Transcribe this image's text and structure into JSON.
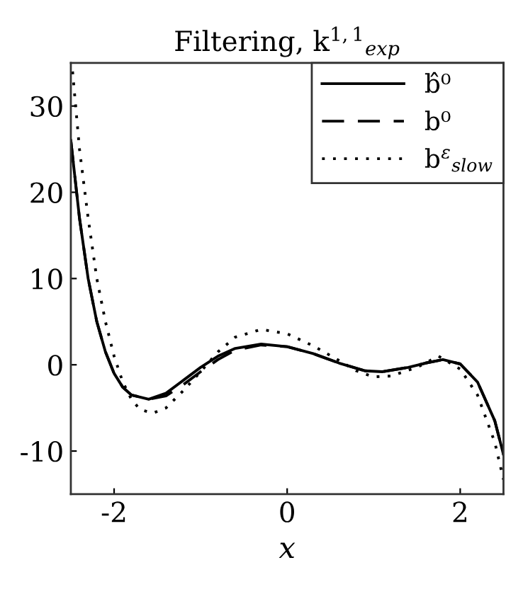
{
  "chart_data": {
    "type": "line",
    "title": "Filtering, k$^{1,1}$$_{exp}$",
    "xlabel": "x",
    "xlim": [
      -2.5,
      2.5
    ],
    "ylim": [
      -15,
      35
    ],
    "xticks": [
      -2,
      0,
      2
    ],
    "yticks": [
      -10,
      0,
      10,
      20,
      30
    ],
    "grid": false,
    "legend": "top right",
    "marker": "none",
    "series": [
      {
        "name": "b̂⁰",
        "color": "#000000",
        "line_style": "solid",
        "x": [
          -2.5,
          -2.4,
          -2.3,
          -2.2,
          -2.1,
          -2.0,
          -1.9,
          -1.8,
          -1.6,
          -1.4,
          -1.2,
          -1.0,
          -0.8,
          -0.6,
          -0.3,
          0,
          0.3,
          0.6,
          0.9,
          1.1,
          1.4,
          1.6,
          1.8,
          2.0,
          2.2,
          2.4,
          2.5
        ],
        "values": [
          26,
          17,
          10,
          5,
          1.5,
          -1,
          -2.6,
          -3.5,
          -4,
          -3.3,
          -1.8,
          -0.3,
          1,
          1.9,
          2.4,
          2.1,
          1.3,
          0.2,
          -0.7,
          -0.8,
          -0.3,
          0.2,
          0.6,
          0.1,
          -2,
          -6.5,
          -10.4
        ]
      },
      {
        "name": "b⁰",
        "color": "#000000",
        "line_style": "dashed",
        "x": [
          -2.5,
          -2.4,
          -2.3,
          -2.2,
          -2.1,
          -2.0,
          -1.9,
          -1.8,
          -1.6,
          -1.4,
          -1.2,
          -1.0,
          -0.8,
          -0.6,
          -0.3,
          0,
          0.3,
          0.6,
          0.9,
          1.1,
          1.4,
          1.6,
          1.8,
          2.0,
          2.2,
          2.4,
          2.5
        ],
        "values": [
          26,
          17,
          10,
          5,
          1.5,
          -1,
          -2.6,
          -3.5,
          -4,
          -3.6,
          -2.3,
          -0.8,
          0.6,
          1.7,
          2.3,
          2.1,
          1.3,
          0.2,
          -0.7,
          -0.8,
          -0.3,
          0.2,
          0.6,
          0.1,
          -2,
          -6.5,
          -10.4
        ]
      },
      {
        "name": "b$^{ε}$$_{slow}$",
        "color": "#000000",
        "line_style": "dotted",
        "x": [
          -2.48,
          -2.4,
          -2.3,
          -2.2,
          -2.1,
          -2.0,
          -1.9,
          -1.8,
          -1.7,
          -1.55,
          -1.4,
          -1.2,
          -1.0,
          -0.8,
          -0.6,
          -0.3,
          0,
          0.3,
          0.6,
          0.8,
          1.0,
          1.2,
          1.5,
          1.75,
          2.0,
          2.2,
          2.4,
          2.5
        ],
        "values": [
          34,
          25,
          17,
          10,
          5,
          1,
          -2,
          -4,
          -5.2,
          -5.6,
          -5,
          -3,
          -0.8,
          1.5,
          3.2,
          4.1,
          3.6,
          2.2,
          0.5,
          -0.7,
          -1.4,
          -1.3,
          -0.3,
          1.0,
          -0.5,
          -3.5,
          -9,
          -13.3
        ]
      }
    ]
  }
}
